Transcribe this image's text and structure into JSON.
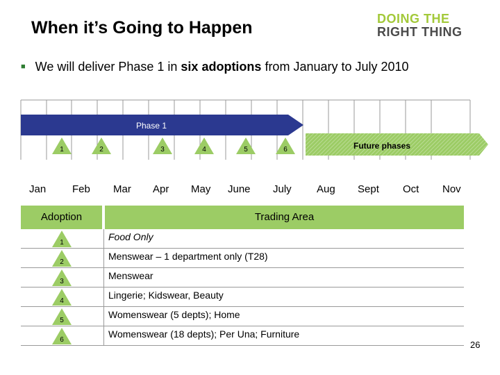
{
  "header": {
    "title": "When it’s Going to Happen",
    "logo_line1": "DOING THE",
    "logo_line2": "RIGHT THING"
  },
  "bullet": {
    "pre": "We will deliver Phase 1 in ",
    "bold": "six adoptions",
    "post": " from January to July 2010"
  },
  "timeline": {
    "phase1_label": "Phase 1",
    "future_label": "Future phases",
    "adoption_markers": [
      "1",
      "2",
      "3",
      "4",
      "5",
      "6"
    ],
    "months": [
      "Jan",
      "Feb",
      "Mar",
      "Apr",
      "May",
      "June",
      "July",
      "Aug",
      "Sept",
      "Oct",
      "Nov"
    ]
  },
  "table": {
    "col1_header": "Adoption",
    "col2_header": "Trading Area",
    "rows": [
      {
        "adoption": "1",
        "area": "Food Only",
        "italic": true
      },
      {
        "adoption": "2",
        "area": "Menswear – 1 department only (T28)",
        "italic": false
      },
      {
        "adoption": "3",
        "area": "Menswear",
        "italic": false
      },
      {
        "adoption": "4",
        "area": "Lingerie; Kidswear, Beauty",
        "italic": false
      },
      {
        "adoption": "5",
        "area": "Womenswear (5 depts); Home",
        "italic": false
      },
      {
        "adoption": "6",
        "area": "Womenswear (18 depts); Per Una; Furniture",
        "italic": false
      }
    ]
  },
  "colors": {
    "phase_arrow": "#2b3990",
    "future_arrow": "#9ccc65",
    "header_fill": "#9ccc65",
    "marker_fill": "#9ccc65"
  },
  "page_number": "26"
}
